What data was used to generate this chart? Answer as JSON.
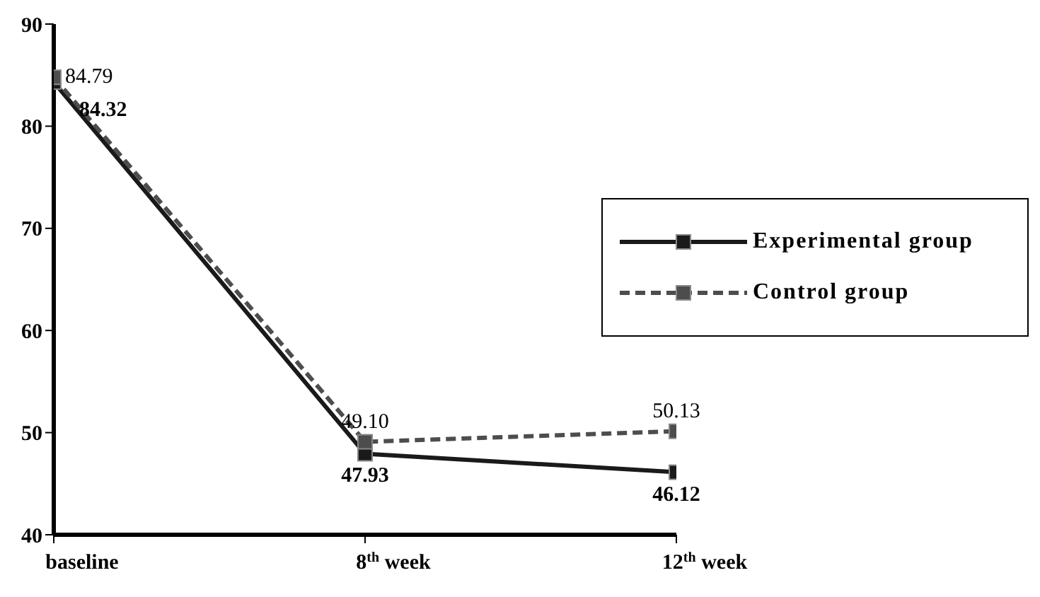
{
  "chart_data": {
    "type": "line",
    "categories": [
      "baseline",
      "8$^{th}$ week",
      "12$^{th}$ week"
    ],
    "series": [
      {
        "name": "Experimental group",
        "color": "#1a1a1a",
        "values": [
          84.32,
          47.93,
          46.12
        ],
        "value_labels": [
          "84.32",
          "47.93",
          "46.12"
        ],
        "line_style": "solid"
      },
      {
        "name": "Control group",
        "color": "#4d4d4d",
        "values": [
          84.79,
          49.1,
          50.13
        ],
        "value_labels": [
          "84.79",
          "49.10",
          "50.13"
        ],
        "line_style": "dashed"
      }
    ],
    "ylim": [
      40,
      90
    ],
    "yticks": [
      40,
      50,
      60,
      70,
      80,
      90
    ],
    "grid": false,
    "legend": "right",
    "marker": "square"
  }
}
